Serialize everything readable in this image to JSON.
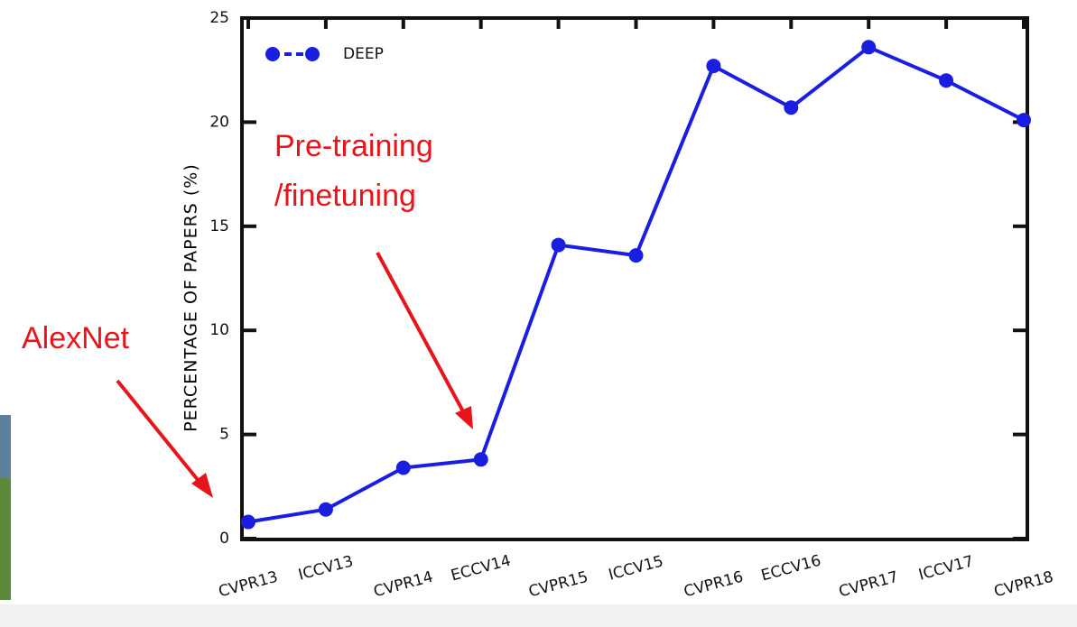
{
  "chart_data": {
    "type": "line",
    "ylabel": "PERCENTAGE OF PAPERS (%)",
    "categories": [
      "CVPR13",
      "ICCV13",
      "CVPR14",
      "ECCV14",
      "CVPR15",
      "ICCV15",
      "CVPR16",
      "ECCV16",
      "CVPR17",
      "ICCV17",
      "CVPR18"
    ],
    "series": [
      {
        "name": "DEEP",
        "color": "#1a1ee0",
        "values": [
          0.8,
          1.4,
          3.4,
          3.8,
          14.1,
          13.6,
          22.7,
          20.7,
          23.6,
          22.0,
          20.1
        ]
      }
    ],
    "ylim": [
      0,
      25
    ],
    "yticks": [
      0,
      5,
      10,
      15,
      20,
      25
    ],
    "legend": "upper left",
    "annotations": [
      {
        "text": "AlexNet"
      },
      {
        "lines": [
          "Pre-training",
          "/finetuning"
        ]
      }
    ]
  }
}
